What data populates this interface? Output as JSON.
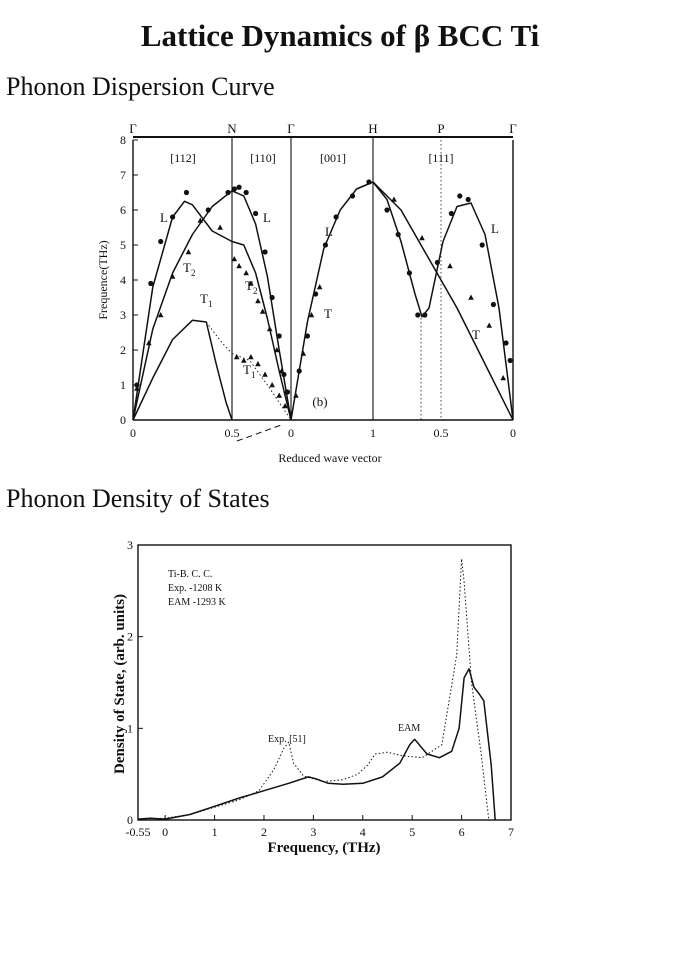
{
  "page": {
    "title": "Lattice Dynamics of β BCC Ti",
    "section1_heading": "Phonon Dispersion Curve",
    "section2_heading": "Phonon Density of States"
  },
  "chart_data": [
    {
      "type": "line",
      "panel_label": "(b)",
      "xlabel": "Reduced wave vector",
      "ylabel": "Frequence(THz)",
      "ylim": [
        0,
        8
      ],
      "y_ticks": [
        "0",
        "1",
        "2",
        "3",
        "4",
        "5",
        "6",
        "7",
        "8"
      ],
      "high_symmetry_points": [
        "Γ",
        "N",
        "Γ",
        "H",
        "P",
        "Γ"
      ],
      "directions": [
        "[112]",
        "[110]",
        "[001]",
        "[111]"
      ],
      "x_tick_labels": [
        "0",
        "0.5",
        "0",
        "1",
        "0.5",
        "0"
      ],
      "branch_labels": [
        "L",
        "L",
        "T2",
        "T2",
        "T1",
        "T1",
        "L",
        "T",
        "L",
        "T"
      ],
      "segments": [
        {
          "direction": "[112]",
          "series": [
            {
              "name": "L",
              "kind": "curve",
              "x": [
                0,
                0.1,
                0.2,
                0.26,
                0.3,
                0.4,
                0.5
              ],
              "y": [
                0,
                3.8,
                5.8,
                6.25,
                6.15,
                5.4,
                5.1
              ]
            },
            {
              "name": "T2",
              "kind": "curve",
              "x": [
                0,
                0.1,
                0.2,
                0.3,
                0.4,
                0.5
              ],
              "y": [
                0,
                2.6,
                4.2,
                5.3,
                6.1,
                6.55
              ]
            },
            {
              "name": "T1",
              "kind": "curve",
              "x": [
                0,
                0.1,
                0.2,
                0.3,
                0.37,
                0.42,
                0.47,
                0.5
              ],
              "y": [
                0,
                1.2,
                2.3,
                2.85,
                2.8,
                1.6,
                0.5,
                0
              ]
            },
            {
              "name": "T1",
              "kind": "dotted",
              "x": [
                0.37,
                0.45,
                0.5
              ],
              "y": [
                2.8,
                2.2,
                1.9
              ]
            },
            {
              "name": "L",
              "kind": "points-circle",
              "x": [
                0.02,
                0.09,
                0.14,
                0.2,
                0.27,
                0.38,
                0.48
              ],
              "y": [
                1.0,
                3.9,
                5.1,
                5.8,
                6.5,
                6.0,
                6.5
              ]
            },
            {
              "name": "T2",
              "kind": "points-triangle",
              "x": [
                0.02,
                0.08,
                0.14,
                0.2,
                0.28,
                0.34,
                0.44
              ],
              "y": [
                0.9,
                2.2,
                3.0,
                4.1,
                4.8,
                5.7,
                5.5
              ]
            }
          ]
        },
        {
          "direction": "[110]",
          "series": [
            {
              "name": "L",
              "kind": "curve",
              "x": [
                0,
                0.1,
                0.2,
                0.3,
                0.4,
                0.5
              ],
              "y": [
                6.55,
                6.4,
                5.6,
                4.1,
                2.0,
                0
              ]
            },
            {
              "name": "T2",
              "kind": "curve",
              "x": [
                0,
                0.1,
                0.2,
                0.3,
                0.4,
                0.5
              ],
              "y": [
                5.1,
                5.0,
                4.2,
                2.9,
                1.4,
                0
              ]
            },
            {
              "name": "T1",
              "kind": "dotted",
              "x": [
                0,
                0.15,
                0.3,
                0.42,
                0.5
              ],
              "y": [
                1.9,
                1.7,
                1.0,
                0.4,
                0
              ]
            },
            {
              "name": "L",
              "kind": "points-circle",
              "x": [
                0.02,
                0.06,
                0.12,
                0.2,
                0.28,
                0.34,
                0.4,
                0.44,
                0.47
              ],
              "y": [
                6.6,
                6.65,
                6.5,
                5.9,
                4.8,
                3.5,
                2.4,
                1.3,
                0.8
              ]
            },
            {
              "name": "T2",
              "kind": "points-triangle",
              "x": [
                0.02,
                0.06,
                0.12,
                0.16,
                0.22,
                0.26,
                0.32,
                0.38,
                0.42,
                0.46
              ],
              "y": [
                4.6,
                4.4,
                4.2,
                3.9,
                3.4,
                3.1,
                2.6,
                2.0,
                1.4,
                0.8
              ]
            },
            {
              "name": "T1",
              "kind": "points-triangle",
              "x": [
                0.04,
                0.1,
                0.16,
                0.22,
                0.28,
                0.34,
                0.4,
                0.45
              ],
              "y": [
                1.8,
                1.7,
                1.8,
                1.6,
                1.3,
                1.0,
                0.7,
                0.4
              ]
            }
          ]
        },
        {
          "direction": "[001]",
          "series": [
            {
              "name": "L=T",
              "kind": "curve",
              "x": [
                0,
                0.2,
                0.4,
                0.6,
                0.8,
                1.0
              ],
              "y": [
                0,
                2.8,
                4.9,
                6.0,
                6.6,
                6.8
              ]
            },
            {
              "name": "L",
              "kind": "points-circle",
              "x": [
                0.1,
                0.2,
                0.3,
                0.42,
                0.55,
                0.75,
                0.95
              ],
              "y": [
                1.4,
                2.4,
                3.6,
                5.0,
                5.8,
                6.4,
                6.8
              ]
            },
            {
              "name": "T",
              "kind": "points-triangle",
              "x": [
                0.06,
                0.15,
                0.25,
                0.35
              ],
              "y": [
                0.7,
                1.9,
                3.0,
                3.8
              ]
            }
          ]
        },
        {
          "direction": "[111]",
          "series": [
            {
              "name": "L",
              "kind": "curve",
              "x": [
                0,
                0.1,
                0.2,
                0.3,
                0.35,
                0.4,
                0.5,
                0.6,
                0.7,
                0.8,
                0.9,
                1.0
              ],
              "y": [
                6.8,
                6.3,
                5.1,
                3.6,
                2.95,
                3.2,
                5.1,
                6.1,
                6.2,
                5.3,
                3.2,
                0
              ]
            },
            {
              "name": "T",
              "kind": "curve",
              "x": [
                0,
                0.2,
                0.4,
                0.6,
                0.8,
                1.0
              ],
              "y": [
                6.8,
                6.0,
                4.6,
                3.2,
                1.6,
                0
              ]
            },
            {
              "name": "L",
              "kind": "points-circle",
              "x": [
                0.1,
                0.18,
                0.26,
                0.32,
                0.37,
                0.46,
                0.56,
                0.62,
                0.68,
                0.78,
                0.86,
                0.95,
                0.98
              ],
              "y": [
                6.0,
                5.3,
                4.2,
                3.0,
                3.0,
                4.5,
                5.9,
                6.4,
                6.3,
                5.0,
                3.3,
                2.2,
                1.7
              ]
            },
            {
              "name": "T",
              "kind": "points-triangle",
              "x": [
                0.15,
                0.35,
                0.55,
                0.7,
                0.83,
                0.93
              ],
              "y": [
                6.3,
                5.2,
                4.4,
                3.5,
                2.7,
                1.2
              ]
            }
          ]
        }
      ]
    },
    {
      "type": "line",
      "xlabel": "Frequency, (THz)",
      "ylabel": "Density of State, (arb. units)",
      "xlim": [
        -0.55,
        7
      ],
      "ylim": [
        0,
        3
      ],
      "x_tick_labels": [
        "-0.55",
        "0",
        "1",
        "2",
        "3",
        "4",
        "5",
        "6",
        "7"
      ],
      "x_tick_values": [
        -0.55,
        0,
        1,
        2,
        3,
        4,
        5,
        6,
        7
      ],
      "y_tick_labels": [
        "0",
        "1",
        "2",
        "3"
      ],
      "legend": [
        "Ti-B. C. C.",
        "Exp. -1208 K",
        "EAM -1293 K"
      ],
      "annotations": [
        "Exp. [51]",
        "EAM"
      ],
      "series": [
        {
          "name": "EAM",
          "style": "solid",
          "x": [
            -0.55,
            -0.3,
            0,
            0.5,
            1.0,
            1.5,
            2.0,
            2.5,
            2.9,
            3.05,
            3.3,
            3.6,
            4.0,
            4.4,
            4.75,
            4.95,
            5.05,
            5.3,
            5.55,
            5.8,
            5.95,
            6.05,
            6.15,
            6.25,
            6.35,
            6.45,
            6.6,
            6.68
          ],
          "y": [
            0.01,
            0.02,
            0.01,
            0.06,
            0.15,
            0.24,
            0.32,
            0.4,
            0.47,
            0.45,
            0.4,
            0.39,
            0.4,
            0.47,
            0.62,
            0.82,
            0.88,
            0.72,
            0.68,
            0.75,
            1.0,
            1.55,
            1.65,
            1.45,
            1.38,
            1.3,
            0.6,
            0
          ]
        },
        {
          "name": "Exp.",
          "style": "dotted",
          "x": [
            -0.55,
            0,
            0.5,
            1.0,
            1.5,
            1.9,
            2.2,
            2.4,
            2.5,
            2.6,
            2.8,
            3.2,
            3.6,
            3.9,
            4.1,
            4.25,
            4.5,
            4.8,
            5.2,
            5.6,
            5.9,
            6.0,
            6.05,
            6.2,
            6.4,
            6.55
          ],
          "y": [
            0.01,
            0.02,
            0.06,
            0.14,
            0.22,
            0.32,
            0.55,
            0.78,
            0.85,
            0.62,
            0.48,
            0.42,
            0.44,
            0.5,
            0.6,
            0.72,
            0.74,
            0.7,
            0.68,
            0.82,
            1.8,
            2.85,
            2.6,
            1.5,
            0.7,
            0
          ]
        }
      ]
    }
  ]
}
